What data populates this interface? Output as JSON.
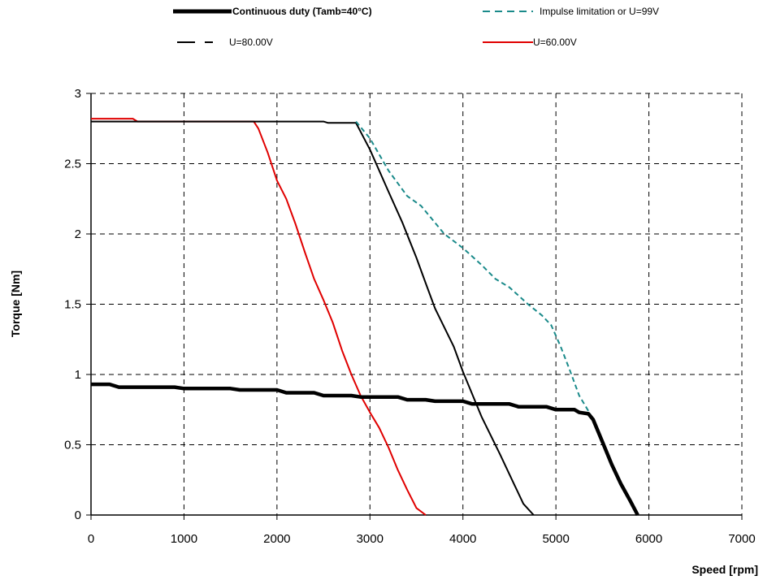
{
  "chart_data": {
    "type": "line",
    "title": "",
    "xlabel": "Speed [rpm]",
    "ylabel": "Torque [Nm]",
    "xlim": [
      0,
      7000
    ],
    "ylim": [
      0,
      3
    ],
    "xticks": [
      0,
      1000,
      2000,
      3000,
      4000,
      5000,
      6000,
      7000
    ],
    "yticks": [
      0,
      0.5,
      1,
      1.5,
      2,
      2.5,
      3
    ],
    "ytick_labels": [
      "0",
      "0.5",
      "1",
      "1.5",
      "2",
      "2.5",
      "3"
    ],
    "grid": true,
    "legend_position": "top",
    "series": [
      {
        "name": "Continuous duty (Tamb=40°C)",
        "color": "#000000",
        "style": "solid-thick",
        "x": [
          0,
          200,
          300,
          900,
          1000,
          1500,
          1600,
          2000,
          2100,
          2400,
          2500,
          2800,
          2900,
          3300,
          3400,
          3600,
          3700,
          4000,
          4100,
          4500,
          4600,
          4900,
          5000,
          5200,
          5250,
          5350,
          5400,
          5500,
          5600,
          5700,
          5800,
          5880
        ],
        "y": [
          0.93,
          0.93,
          0.91,
          0.91,
          0.9,
          0.9,
          0.89,
          0.89,
          0.87,
          0.87,
          0.85,
          0.85,
          0.84,
          0.84,
          0.82,
          0.82,
          0.81,
          0.81,
          0.79,
          0.79,
          0.77,
          0.77,
          0.75,
          0.75,
          0.73,
          0.72,
          0.68,
          0.52,
          0.36,
          0.22,
          0.1,
          0
        ]
      },
      {
        "name": "Impulse limitation or U=99V",
        "color": "#1a8a8a",
        "style": "dashed",
        "x": [
          2850,
          3000,
          3200,
          3400,
          3550,
          3800,
          4000,
          4200,
          4350,
          4500,
          4700,
          4850,
          4950,
          5050,
          5150,
          5250,
          5350,
          5400,
          5500,
          5600,
          5700,
          5800,
          5880
        ],
        "y": [
          2.8,
          2.68,
          2.45,
          2.27,
          2.2,
          2.0,
          1.9,
          1.78,
          1.68,
          1.62,
          1.5,
          1.42,
          1.35,
          1.2,
          1.03,
          0.85,
          0.74,
          0.68,
          0.52,
          0.36,
          0.22,
          0.1,
          0
        ]
      },
      {
        "name": "U=80.00V",
        "color": "#000000",
        "style": "solid",
        "x": [
          0,
          2000,
          2500,
          2550,
          2850,
          3000,
          3200,
          3350,
          3500,
          3600,
          3700,
          3900,
          4000,
          4200,
          4400,
          4550,
          4650,
          4760
        ],
        "y": [
          2.8,
          2.8,
          2.8,
          2.79,
          2.79,
          2.6,
          2.3,
          2.08,
          1.83,
          1.65,
          1.47,
          1.2,
          1.02,
          0.7,
          0.43,
          0.22,
          0.08,
          0
        ]
      },
      {
        "name": "U=60.00V",
        "color": "#e00000",
        "style": "solid",
        "x": [
          0,
          450,
          500,
          1750,
          1800,
          1900,
          2000,
          2100,
          2200,
          2300,
          2400,
          2500,
          2600,
          2700,
          2800,
          2900,
          3000,
          3100,
          3200,
          3300,
          3400,
          3500,
          3600
        ],
        "y": [
          2.82,
          2.82,
          2.8,
          2.8,
          2.75,
          2.58,
          2.38,
          2.25,
          2.07,
          1.87,
          1.68,
          1.53,
          1.37,
          1.17,
          1.0,
          0.85,
          0.73,
          0.62,
          0.48,
          0.32,
          0.18,
          0.05,
          0
        ]
      }
    ]
  }
}
